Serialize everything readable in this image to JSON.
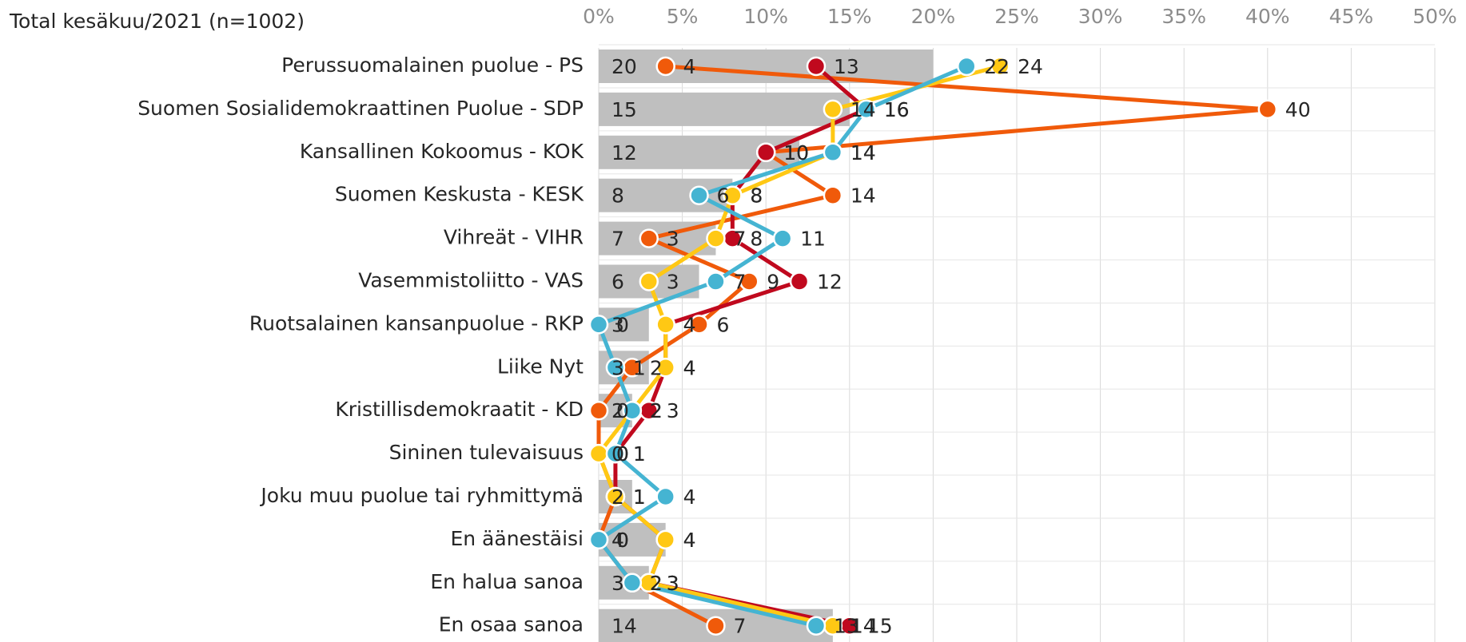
{
  "chart_data": {
    "type": "bar_line",
    "title": "Total kesäkuu/2021 (n=1002)",
    "categories": [
      "Perussuomalainen puolue - PS",
      "Suomen Sosialidemokraattinen Puolue - SDP",
      "Kansallinen Kokoomus - KOK",
      "Suomen Keskusta - KESK",
      "Vihreät - VIHR",
      "Vasemmistoliitto - VAS",
      "Ruotsalainen kansanpuolue - RKP",
      "Liike Nyt",
      "Kristillisdemokraatit - KD",
      "Sininen tulevaisuus",
      "Joku muu puolue tai ryhmittymä",
      "En äänestäisi",
      "En halua sanoa",
      "En osaa sanoa"
    ],
    "values": [
      20,
      15,
      12,
      8,
      7,
      6,
      3,
      3,
      2,
      0,
      2,
      4,
      3,
      14
    ],
    "color": "#bfbfbf",
    "series": [
      {
        "color": "#f05a0a",
        "label_color": "#e85a10",
        "values": [
          4,
          40,
          10,
          14,
          3,
          9,
          6,
          2,
          0,
          0,
          1,
          0,
          2,
          7
        ]
      },
      {
        "color": "#c0091e",
        "label_color": "#a0001a",
        "values": [
          13,
          16,
          10,
          8,
          8,
          12,
          4,
          4,
          3,
          1,
          1,
          4,
          3,
          15
        ]
      },
      {
        "color": "#ffc814",
        "label_color": "#b88a00",
        "values": [
          24,
          14,
          14,
          8,
          7,
          3,
          4,
          4,
          2,
          0,
          1,
          4,
          3,
          14
        ]
      },
      {
        "color": "#45b4d2",
        "label_color": "#3aa6c4",
        "values": [
          22,
          16,
          14,
          6,
          11,
          7,
          0,
          1,
          2,
          1,
          4,
          0,
          2,
          13
        ]
      }
    ],
    "xlim": [
      0,
      50
    ],
    "xticks": [
      {
        "value": 0,
        "label": "0%"
      },
      {
        "value": 5,
        "label": "5%"
      },
      {
        "value": 10,
        "label": "10%"
      },
      {
        "value": 15,
        "label": "15%"
      },
      {
        "value": 20,
        "label": "20%"
      },
      {
        "value": 25,
        "label": "25%"
      },
      {
        "value": 30,
        "label": "30%"
      },
      {
        "value": 35,
        "label": "35%"
      },
      {
        "value": 40,
        "label": "40%"
      },
      {
        "value": 45,
        "label": "45%"
      },
      {
        "value": 50,
        "label": "50%"
      }
    ],
    "grid": true
  }
}
